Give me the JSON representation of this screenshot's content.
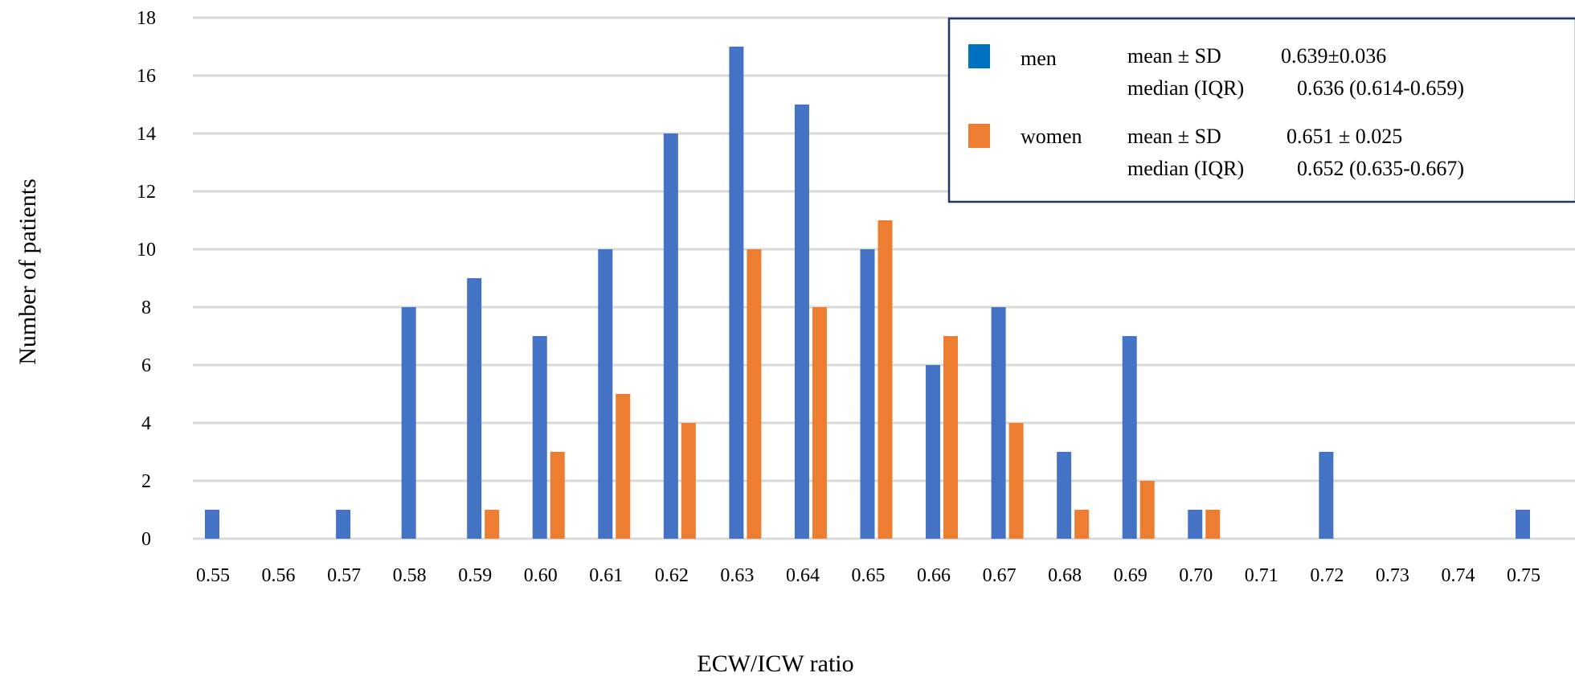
{
  "chart_data": {
    "type": "bar",
    "xlabel": "ECW/ICW ratio",
    "ylabel": "Number of patients",
    "ylim": [
      0,
      18
    ],
    "yticks": [
      0,
      2,
      4,
      6,
      8,
      10,
      12,
      14,
      16,
      18
    ],
    "grid": true,
    "legend_position": "top-right",
    "categories": [
      "0.55",
      "0.56",
      "0.57",
      "0.58",
      "0.59",
      "0.60",
      "0.61",
      "0.62",
      "0.63",
      "0.64",
      "0.65",
      "0.66",
      "0.67",
      "0.68",
      "0.69",
      "0.70",
      "0.71",
      "0.72",
      "0.73",
      "0.74",
      "0.75"
    ],
    "series": [
      {
        "name": "men",
        "color": "#4472C4",
        "values": [
          1,
          0,
          1,
          8,
          9,
          7,
          10,
          14,
          17,
          15,
          10,
          6,
          8,
          3,
          7,
          1,
          0,
          3,
          0,
          0,
          1
        ]
      },
      {
        "name": "women",
        "color": "#ED7D31",
        "values": [
          0,
          0,
          0,
          0,
          1,
          3,
          5,
          4,
          10,
          8,
          11,
          7,
          4,
          1,
          2,
          1,
          0,
          0,
          0,
          0,
          0
        ]
      }
    ],
    "legend": {
      "men": {
        "label": "men",
        "swatch_color": "#0070C0",
        "line1_label": "mean ± SD",
        "line1_value": "0.639±0.036",
        "line2_label": "median (IQR)",
        "line2_value": "0.636 (0.614-0.659)"
      },
      "women": {
        "label": "women",
        "swatch_color": "#ED7D31",
        "line1_label": "mean ± SD",
        "line1_value": "0.651 ± 0.025",
        "line2_label": "median (IQR)",
        "line2_value": "0.652 (0.635-0.667)"
      },
      "border_color": "#1F3864"
    },
    "grid_color": "#D9D9D9"
  }
}
